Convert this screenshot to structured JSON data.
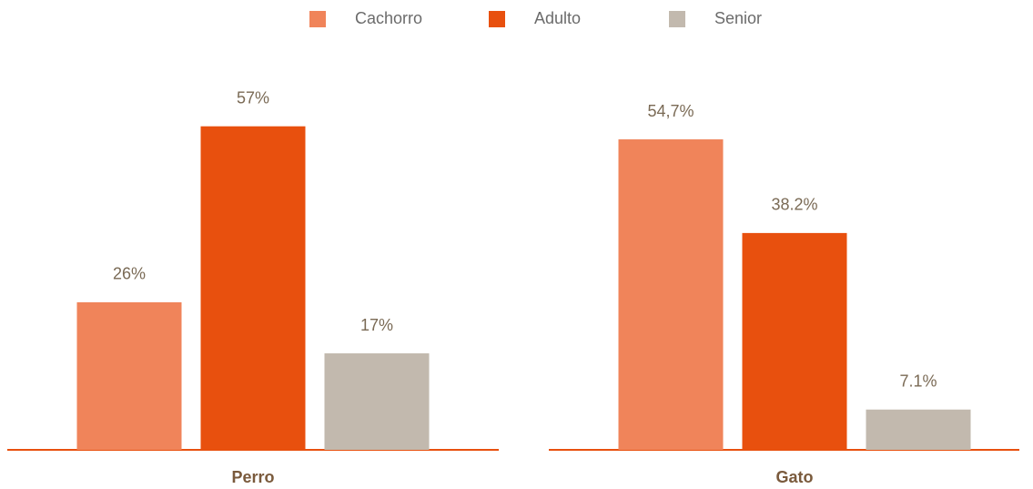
{
  "chart_data": {
    "type": "bar",
    "categories": [
      "Perro",
      "Gato"
    ],
    "series": [
      {
        "name": "Cachorro",
        "color": "#f0845a",
        "values": [
          26,
          54.7
        ],
        "value_labels": [
          "26%",
          "54,7%"
        ]
      },
      {
        "name": "Adulto",
        "color": "#e8500e",
        "values": [
          57,
          38.2
        ],
        "value_labels": [
          "57%",
          "38.2%"
        ]
      },
      {
        "name": "Senior",
        "color": "#c2b9ae",
        "values": [
          17,
          7.1
        ],
        "value_labels": [
          "17%",
          "7.1%"
        ]
      }
    ],
    "ylim": [
      0,
      60
    ]
  }
}
